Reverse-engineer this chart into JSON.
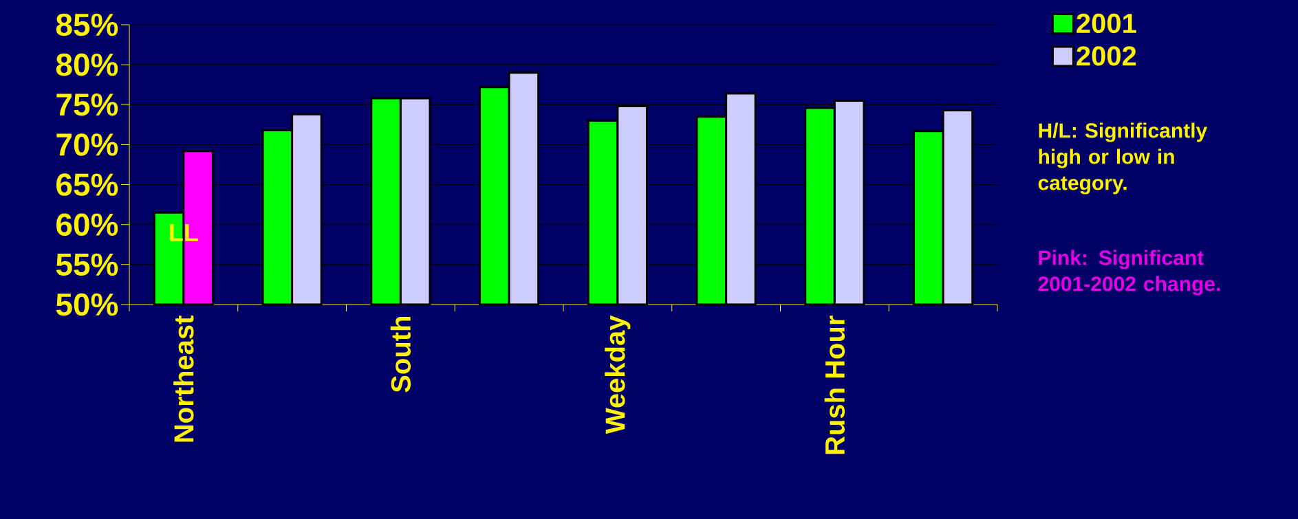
{
  "chart_data": {
    "type": "bar",
    "categories": [
      "Northeast",
      null,
      "South",
      null,
      "Weekday",
      null,
      "Rush Hour",
      null
    ],
    "series": [
      {
        "name": "2001",
        "color": "#00ff00",
        "values": [
          61.5,
          71.8,
          75.8,
          77.2,
          73.0,
          73.5,
          74.6,
          71.7
        ]
      },
      {
        "name": "2002",
        "color": "#ccccff",
        "colors": [
          "#ff00ff",
          "#ccccff",
          "#ccccff",
          "#ccccff",
          "#ccccff",
          "#ccccff",
          "#ccccff",
          "#ccccff"
        ],
        "values": [
          69.2,
          73.8,
          75.8,
          79.0,
          74.8,
          76.4,
          75.5,
          74.3
        ]
      }
    ],
    "ylim": [
      50,
      85
    ],
    "yticks": [
      {
        "value": 50,
        "label": "50%"
      },
      {
        "value": 55,
        "label": "55%"
      },
      {
        "value": 60,
        "label": "60%"
      },
      {
        "value": 65,
        "label": "65%"
      },
      {
        "value": 70,
        "label": "70%"
      },
      {
        "value": 75,
        "label": "75%"
      },
      {
        "value": 80,
        "label": "80%"
      },
      {
        "value": 85,
        "label": "85%"
      }
    ],
    "grid": "y",
    "legend": "top right",
    "annotations": [
      {
        "text": "LL",
        "x": "Northeast",
        "y": 59
      },
      "H/L: Significantly high or low in category.",
      "Pink: Significant 2001-2002 change."
    ]
  }
}
